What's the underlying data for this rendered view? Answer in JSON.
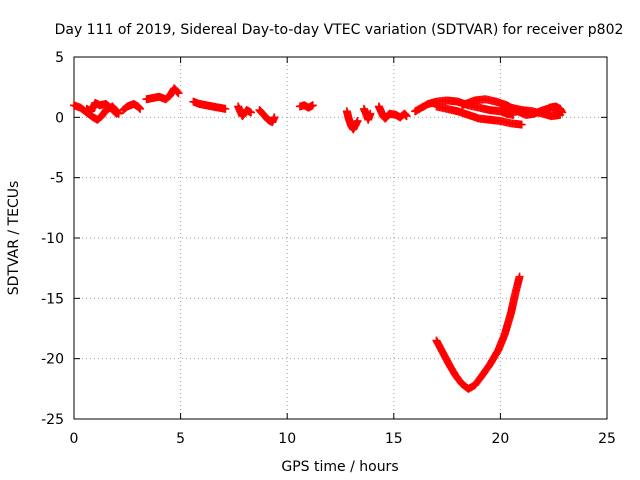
{
  "chart_data": {
    "type": "scatter",
    "title": "Day 111 of 2019, Sidereal Day-to-day VTEC variation (SDTVAR) for receiver p802",
    "xlabel": "GPS time / hours",
    "ylabel": "SDTVAR / TECUs",
    "xlim": [
      0,
      25
    ],
    "ylim": [
      -25,
      5
    ],
    "xticks": [
      0,
      5,
      10,
      15,
      20,
      25
    ],
    "yticks": [
      -25,
      -20,
      -15,
      -10,
      -5,
      0,
      5
    ],
    "grid": true,
    "marker": "plus",
    "series": [
      {
        "name": "SDTVAR",
        "color": "#ff0000",
        "segments": [
          [
            [
              0.0,
              1.0
            ],
            [
              0.3,
              0.8
            ],
            [
              0.6,
              0.4
            ],
            [
              0.9,
              0.0
            ],
            [
              1.1,
              -0.2
            ],
            [
              1.3,
              0.1
            ],
            [
              1.5,
              0.6
            ],
            [
              1.8,
              0.9
            ],
            [
              2.0,
              0.5
            ],
            [
              2.1,
              0.3
            ]
          ],
          [
            [
              0.6,
              0.7
            ],
            [
              0.8,
              0.5
            ],
            [
              1.0,
              1.2
            ],
            [
              1.2,
              1.0
            ],
            [
              1.5,
              1.1
            ],
            [
              1.7,
              0.8
            ],
            [
              2.0,
              0.3
            ]
          ],
          [
            [
              2.3,
              0.6
            ],
            [
              2.5,
              0.9
            ],
            [
              2.8,
              1.1
            ],
            [
              3.0,
              0.9
            ],
            [
              3.1,
              0.7
            ]
          ],
          [
            [
              3.4,
              1.5
            ],
            [
              3.7,
              1.6
            ],
            [
              4.0,
              1.7
            ],
            [
              4.3,
              1.5
            ],
            [
              4.5,
              1.8
            ],
            [
              4.7,
              2.4
            ],
            [
              4.9,
              2.0
            ]
          ],
          [
            [
              5.6,
              1.3
            ],
            [
              5.9,
              1.1
            ],
            [
              6.2,
              1.0
            ],
            [
              6.5,
              0.9
            ],
            [
              6.8,
              0.8
            ],
            [
              7.1,
              0.7
            ]
          ],
          [
            [
              7.7,
              0.9
            ],
            [
              7.8,
              0.5
            ],
            [
              7.9,
              0.1
            ],
            [
              8.1,
              0.6
            ],
            [
              8.3,
              0.4
            ]
          ],
          [
            [
              8.7,
              0.6
            ],
            [
              8.9,
              0.2
            ],
            [
              9.1,
              -0.2
            ],
            [
              9.3,
              -0.4
            ],
            [
              9.4,
              0.0
            ]
          ],
          [
            [
              10.6,
              0.9
            ],
            [
              10.8,
              1.0
            ],
            [
              11.0,
              0.8
            ],
            [
              11.2,
              1.0
            ]
          ],
          [
            [
              12.8,
              0.5
            ],
            [
              12.9,
              -0.2
            ],
            [
              13.0,
              -0.7
            ],
            [
              13.1,
              -1.0
            ],
            [
              13.3,
              -0.3
            ]
          ],
          [
            [
              13.6,
              0.7
            ],
            [
              13.7,
              0.3
            ],
            [
              13.8,
              -0.2
            ],
            [
              13.9,
              0.3
            ]
          ],
          [
            [
              14.3,
              0.9
            ],
            [
              14.4,
              0.5
            ],
            [
              14.5,
              0.1
            ],
            [
              14.6,
              -0.1
            ],
            [
              14.8,
              0.3
            ],
            [
              15.1,
              0.2
            ],
            [
              15.3,
              0.0
            ],
            [
              15.5,
              0.3
            ],
            [
              15.6,
              0.1
            ]
          ],
          [
            [
              16.0,
              0.5
            ],
            [
              16.3,
              0.8
            ],
            [
              16.6,
              1.1
            ],
            [
              17.0,
              1.3
            ],
            [
              17.5,
              1.4
            ],
            [
              18.0,
              1.3
            ],
            [
              18.5,
              1.0
            ],
            [
              19.0,
              0.8
            ],
            [
              19.5,
              0.6
            ],
            [
              20.0,
              0.5
            ],
            [
              20.3,
              0.3
            ],
            [
              20.6,
              0.2
            ]
          ],
          [
            [
              17.0,
              0.9
            ],
            [
              17.5,
              0.7
            ],
            [
              18.0,
              0.5
            ],
            [
              18.5,
              0.2
            ],
            [
              19.0,
              -0.1
            ],
            [
              19.5,
              -0.2
            ],
            [
              20.0,
              -0.3
            ],
            [
              20.5,
              -0.5
            ],
            [
              21.0,
              -0.6
            ]
          ],
          [
            [
              18.2,
              1.0
            ],
            [
              18.8,
              1.4
            ],
            [
              19.3,
              1.5
            ],
            [
              19.8,
              1.3
            ],
            [
              20.3,
              1.0
            ],
            [
              20.8,
              0.5
            ],
            [
              21.2,
              0.2
            ],
            [
              21.6,
              0.3
            ],
            [
              22.0,
              0.6
            ],
            [
              22.4,
              0.8
            ],
            [
              22.8,
              0.7
            ]
          ],
          [
            [
              20.0,
              1.0
            ],
            [
              20.5,
              0.8
            ],
            [
              21.0,
              0.6
            ],
            [
              21.5,
              0.5
            ],
            [
              22.0,
              0.3
            ],
            [
              22.4,
              0.1
            ],
            [
              22.8,
              0.2
            ]
          ],
          [
            [
              22.3,
              0.8
            ],
            [
              22.6,
              0.9
            ],
            [
              22.8,
              0.7
            ],
            [
              22.9,
              0.4
            ]
          ],
          [
            [
              17.0,
              -18.5
            ],
            [
              17.3,
              -19.5
            ],
            [
              17.6,
              -20.5
            ],
            [
              17.9,
              -21.4
            ],
            [
              18.2,
              -22.1
            ],
            [
              18.5,
              -22.5
            ],
            [
              18.8,
              -22.2
            ],
            [
              19.1,
              -21.5
            ],
            [
              19.5,
              -20.5
            ],
            [
              19.9,
              -19.3
            ],
            [
              20.2,
              -18.0
            ],
            [
              20.5,
              -16.2
            ],
            [
              20.7,
              -14.6
            ],
            [
              20.9,
              -13.2
            ]
          ]
        ]
      }
    ]
  }
}
